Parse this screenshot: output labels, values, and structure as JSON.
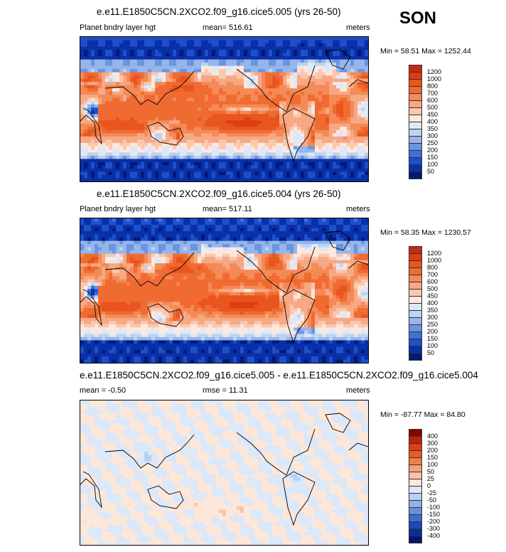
{
  "season": "SON",
  "panels": [
    {
      "title": "e.e11.E1850C5CN.2XCO2.f09_g16.cice5.005 (yrs 26-50)",
      "left_label": "Planet bndry layer hgt",
      "center_label": "mean= 516.61",
      "right_label": "meters",
      "minmax": "Min =  58.51 Max = 1252.44"
    },
    {
      "title": "e.e11.E1850C5CN.2XCO2.f09_g16.cice5.004 (yrs 26-50)",
      "left_label": "Planet bndry layer hgt",
      "center_label": "mean= 517.11",
      "right_label": "meters",
      "minmax": "Min =  58.35 Max = 1230.57"
    },
    {
      "title": "e.e11.E1850C5CN.2XCO2.f09_g16.cice5.005 - e.e11.E1850C5CN.2XCO2.f09_g16.cice5.004",
      "left_label": "mean =  -0.50",
      "center_label": "rmse =  11.31",
      "right_label": "meters",
      "minmax": "Min = -87.77 Max =  84.80"
    }
  ],
  "chart_data": [
    {
      "type": "heatmap",
      "title": "e.e11.E1850C5CN.2XCO2.f09_g16.cice5.005 (yrs 26-50)",
      "variable": "Planet bndry layer hgt",
      "units": "meters",
      "mean": 516.61,
      "min": 58.51,
      "max": 1252.44,
      "colorbar": {
        "levels": [
          "1200",
          "1000",
          "800",
          "700",
          "600",
          "500",
          "450",
          "400",
          "350",
          "300",
          "250",
          "200",
          "150",
          "100",
          "50"
        ],
        "colors": [
          "#c82a10",
          "#dd3e14",
          "#e9551f",
          "#f06b32",
          "#f48a56",
          "#f7a884",
          "#fac8b0",
          "#fde8dc",
          "#dde8f8",
          "#bcd3f2",
          "#96b6ea",
          "#6b95e0",
          "#3f71d8",
          "#1e50c8",
          "#0a30a8",
          "#001a78"
        ]
      }
    },
    {
      "type": "heatmap",
      "title": "e.e11.E1850C5CN.2XCO2.f09_g16.cice5.004 (yrs 26-50)",
      "variable": "Planet bndry layer hgt",
      "units": "meters",
      "mean": 517.11,
      "min": 58.35,
      "max": 1230.57,
      "colorbar": {
        "levels": [
          "1200",
          "1000",
          "800",
          "700",
          "600",
          "500",
          "450",
          "400",
          "350",
          "300",
          "250",
          "200",
          "150",
          "100",
          "50"
        ],
        "colors": [
          "#c82a10",
          "#dd3e14",
          "#e9551f",
          "#f06b32",
          "#f48a56",
          "#f7a884",
          "#fac8b0",
          "#fde8dc",
          "#dde8f8",
          "#bcd3f2",
          "#96b6ea",
          "#6b95e0",
          "#3f71d8",
          "#1e50c8",
          "#0a30a8",
          "#001a78"
        ]
      }
    },
    {
      "type": "heatmap",
      "title": "e.e11.E1850C5CN.2XCO2.f09_g16.cice5.005 - e.e11.E1850C5CN.2XCO2.f09_g16.cice5.004",
      "units": "meters",
      "mean": -0.5,
      "rmse": 11.31,
      "min": -87.77,
      "max": 84.8,
      "colorbar": {
        "levels": [
          "400",
          "300",
          "200",
          "150",
          "100",
          "50",
          "25",
          "0",
          "-25",
          "-50",
          "-100",
          "-150",
          "-200",
          "-300",
          "-400"
        ],
        "colors": [
          "#8b0000",
          "#c0200f",
          "#dd3e14",
          "#ea5a28",
          "#f27d48",
          "#f6a077",
          "#fac3a6",
          "#fde7d8",
          "#dbe8fa",
          "#b7d1f3",
          "#8fb2ea",
          "#6890dc",
          "#3f6bd0",
          "#1d48b8",
          "#0a2c98",
          "#001670"
        ]
      }
    }
  ]
}
